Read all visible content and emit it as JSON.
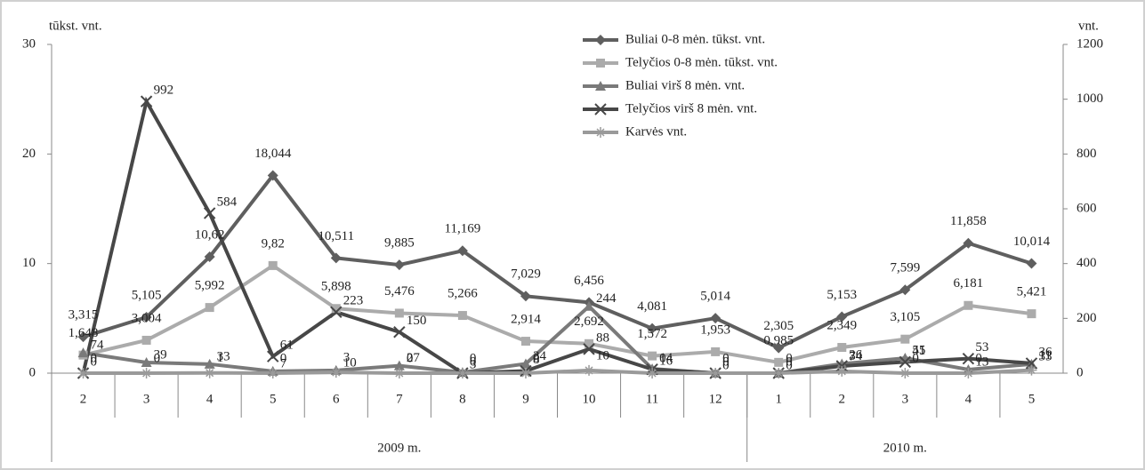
{
  "chart_data": {
    "type": "line",
    "y_label": "tūkst. vnt.",
    "y2_label": "vnt.",
    "groups": [
      {
        "label": "2009 m.",
        "categories": [
          "2",
          "3",
          "4",
          "5",
          "6",
          "7",
          "8",
          "9",
          "10",
          "11",
          "12"
        ]
      },
      {
        "label": "2010 m.",
        "categories": [
          "1",
          "2",
          "3",
          "4",
          "5"
        ]
      }
    ],
    "ylim": [
      0,
      30
    ],
    "yticks": [
      0,
      10,
      20,
      30
    ],
    "y2lim": [
      0,
      1200
    ],
    "y2ticks": [
      0,
      200,
      400,
      600,
      800,
      1000,
      1200
    ],
    "legend": "top",
    "series": [
      {
        "name": "Buliai 0-8 mėn.  tūkst. vnt.",
        "color": "#5f5f5f",
        "marker": "diamond",
        "values": [
          3.315,
          5.105,
          10.62,
          18.044,
          10.511,
          9.885,
          11.169,
          7.029,
          6.456,
          4.081,
          5.014,
          2.305,
          5.153,
          7.599,
          11.858,
          10.014
        ],
        "value_labels": [
          "3,315",
          "5,105",
          "10,62",
          "18,044",
          "10,511",
          "9,885",
          "11,169",
          "7,029",
          "6,456",
          "4,081",
          "5,014",
          "2,305",
          "5,153",
          "7,599",
          "11,858",
          "10,014"
        ]
      },
      {
        "name": "Telyčios 0-8 mėn. tūkst. vnt.",
        "color": "#ababab",
        "marker": "square",
        "values": [
          1.648,
          3.004,
          5.992,
          9.82,
          5.898,
          5.476,
          5.266,
          2.914,
          2.692,
          1.572,
          1.953,
          0.985,
          2.349,
          3.105,
          6.181,
          5.421
        ],
        "value_labels": [
          "1,648",
          "3,004",
          "5,992",
          "9,82",
          "5,898",
          "5,476",
          "5,266",
          "2,914",
          "2,692",
          "1,572",
          "1,953",
          "0,985",
          "2,349",
          "3,105",
          "6,181",
          "5,421"
        ]
      },
      {
        "name": "Buliai virš 8 mėn.  vnt.",
        "color": "#7a7a7a",
        "marker": "triangle",
        "axis": "y2",
        "values": [
          74,
          39,
          33,
          7,
          10,
          27,
          3,
          34,
          244,
          16,
          0,
          0,
          34,
          55,
          13,
          33
        ]
      },
      {
        "name": "Telyčios virš 8 mėn. vnt.",
        "color": "#474747",
        "marker": "x",
        "axis": "y2",
        "values": [
          0,
          992,
          584,
          61,
          223,
          150,
          0,
          8,
          88,
          14,
          0,
          0,
          26,
          41,
          53,
          36
        ]
      },
      {
        "name": "Karvės vnt.",
        "color": "#9a9a9a",
        "marker": "star",
        "axis": "y2",
        "values": [
          0,
          0,
          1,
          0,
          3,
          0,
          0,
          0,
          10,
          0,
          0,
          0,
          7,
          0,
          0,
          11
        ]
      }
    ]
  }
}
